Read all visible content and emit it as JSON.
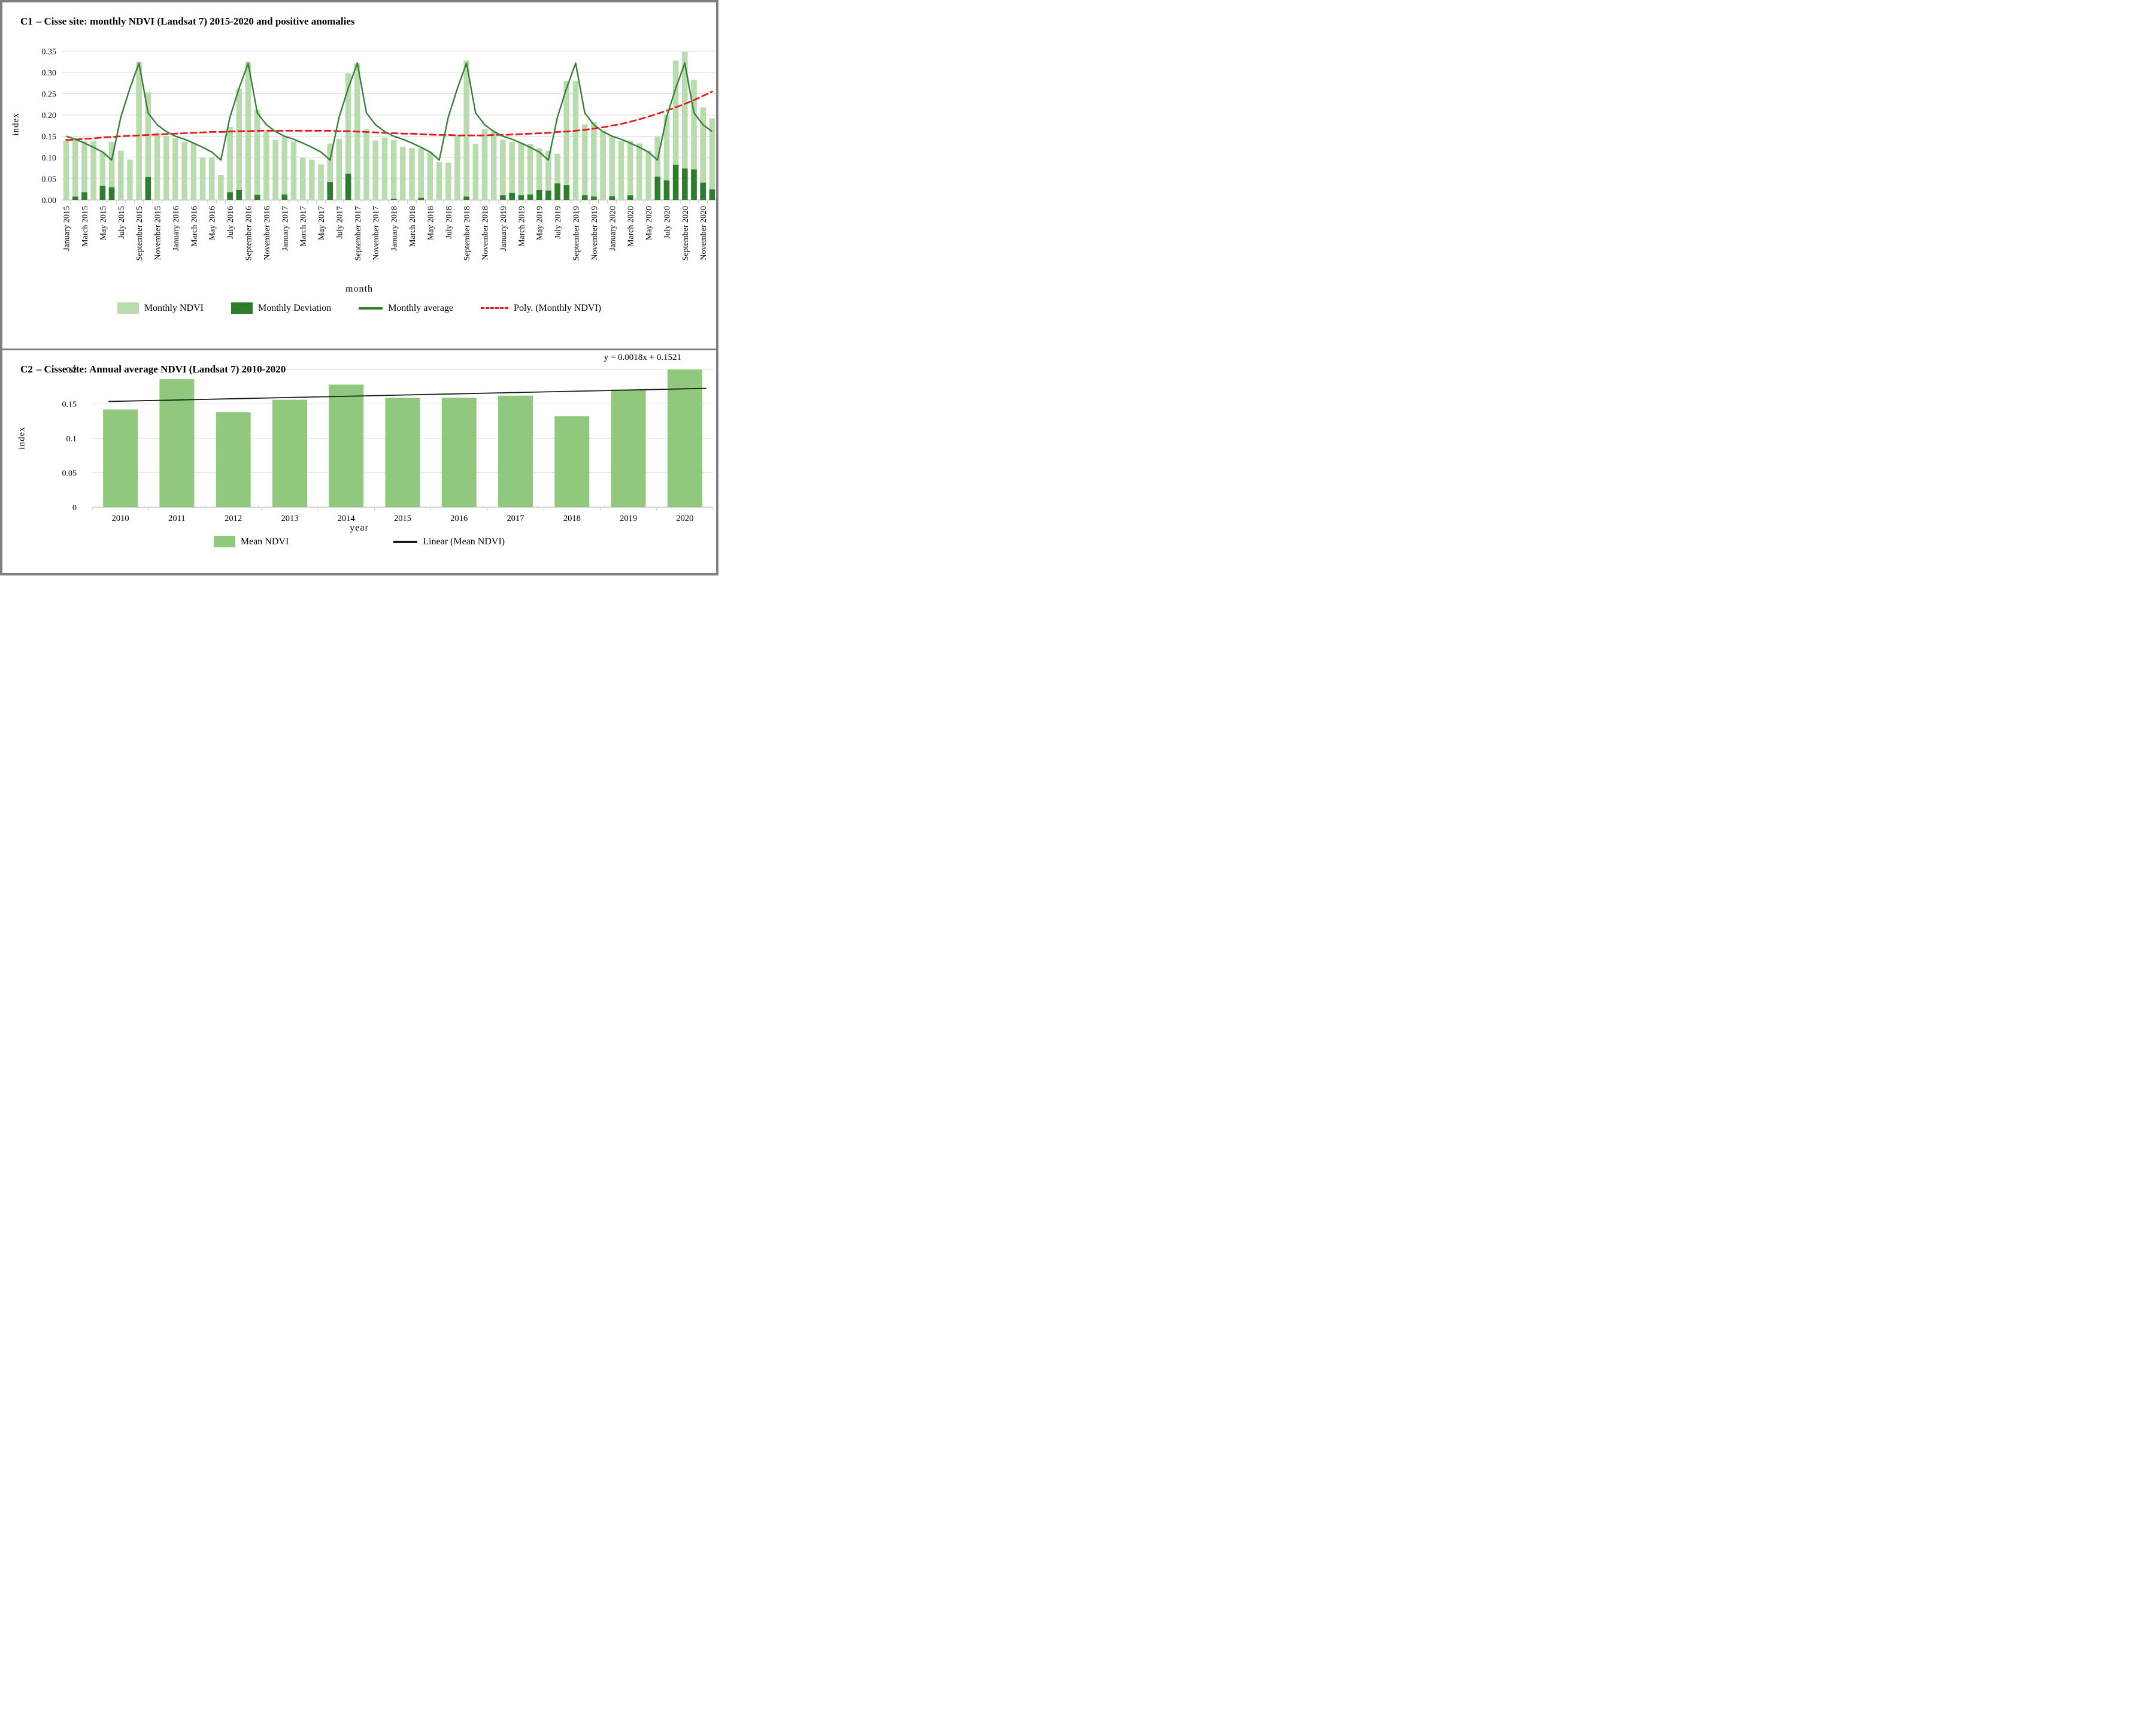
{
  "c1": {
    "title_prefix": "C1",
    "title_rest": "– Cisse site: monthly NDVI (Landsat 7) 2015-2020 and positive anomalies",
    "y_axis_label": "index",
    "x_axis_label": "month",
    "legend": [
      {
        "label": "Monthly NDVI",
        "type": "swatch",
        "color": "#b9dcae"
      },
      {
        "label": "Monthly Deviation",
        "type": "swatch",
        "color": "#2d7d2d"
      },
      {
        "label": "Monthly average",
        "type": "line",
        "color": "#377f37"
      },
      {
        "label": "Poly. (Monthly NDVI)",
        "type": "dashed-line",
        "color": "#e8191c"
      }
    ]
  },
  "c2": {
    "title_prefix": "C2",
    "title_rest": "– Cisse site: Annual average NDVI (Landsat 7) 2010-2020",
    "equation": "y = 0.0018x + 0.1521",
    "y_axis_label": "index",
    "x_axis_label": "year",
    "legend": [
      {
        "label": "Mean NDVI",
        "type": "swatch",
        "color": "#90c97e"
      },
      {
        "label": "Linear (Mean NDVI)",
        "type": "line",
        "color": "#1a1a1a"
      }
    ]
  },
  "chart_data": [
    {
      "id": "c1",
      "type": "bar",
      "title": "C1 – Cisse site: monthly NDVI (Landsat 7) 2015-2020 and positive anomalies",
      "xlabel": "month",
      "ylabel": "index",
      "ylim": [
        0,
        0.35
      ],
      "ytick_step": 0.05,
      "grid": true,
      "legend_position": "bottom",
      "x_ticks_every": 2,
      "categories": [
        "January 2015",
        "February 2015",
        "March 2015",
        "April 2015",
        "May 2015",
        "June 2015",
        "July 2015",
        "August 2015",
        "September 2015",
        "October 2015",
        "November 2015",
        "December 2015",
        "January 2016",
        "February 2016",
        "March 2016",
        "April 2016",
        "May 2016",
        "June 2016",
        "July 2016",
        "August 2016",
        "September 2016",
        "October 2016",
        "November 2016",
        "December 2016",
        "January 2017",
        "February 2017",
        "March 2017",
        "April 2017",
        "May 2017",
        "June 2017",
        "July 2017",
        "August 2017",
        "September 2017",
        "October 2017",
        "November 2017",
        "December 2017",
        "January 2018",
        "February 2018",
        "March 2018",
        "April 2018",
        "May 2018",
        "June 2018",
        "July 2018",
        "August 2018",
        "September 2018",
        "October 2018",
        "November 2018",
        "December 2018",
        "January 2019",
        "February 2019",
        "March 2019",
        "April 2019",
        "May 2019",
        "June 2019",
        "July 2019",
        "August 2019",
        "September 2019",
        "October 2019",
        "November 2019",
        "December 2019",
        "January 2020",
        "February 2020",
        "March 2020",
        "April 2020",
        "May 2020",
        "June 2020",
        "July 2020",
        "August 2020",
        "September 2020",
        "October 2020",
        "November 2020",
        "December 2020"
      ],
      "series": [
        {
          "name": "Monthly NDVI",
          "type": "bar",
          "color": "#b9dcae",
          "values": [
            0.139,
            0.145,
            0.139,
            0.139,
            0.114,
            0.137,
            0.116,
            0.095,
            0.325,
            0.253,
            0.158,
            0.15,
            0.145,
            0.137,
            0.134,
            0.099,
            0.1,
            0.059,
            0.172,
            0.262,
            0.325,
            0.213,
            0.161,
            0.141,
            0.15,
            0.138,
            0.1,
            0.095,
            0.084,
            0.133,
            0.144,
            0.298,
            0.322,
            0.166,
            0.14,
            0.147,
            0.141,
            0.125,
            0.122,
            0.122,
            0.113,
            0.089,
            0.088,
            0.151,
            0.328,
            0.132,
            0.167,
            0.162,
            0.142,
            0.137,
            0.134,
            0.132,
            0.122,
            0.116,
            0.109,
            0.28,
            0.28,
            0.178,
            0.183,
            0.162,
            0.149,
            0.139,
            0.139,
            0.133,
            0.116,
            0.149,
            0.2,
            0.328,
            0.348,
            0.283,
            0.218,
            0.192
          ]
        },
        {
          "name": "Monthly Deviation",
          "type": "bar",
          "color": "#2d7d2d",
          "values": [
            0,
            0.008,
            0.018,
            0,
            0.033,
            0.03,
            0,
            0,
            0,
            0.054,
            0,
            0,
            0,
            0,
            0,
            0,
            0,
            0,
            0.018,
            0.024,
            0,
            0.012,
            0,
            0,
            0.013,
            0,
            0,
            0,
            0,
            0.042,
            0,
            0.062,
            0,
            0,
            0,
            0,
            0.003,
            0,
            0,
            0.005,
            0,
            0,
            0,
            0,
            0.008,
            0,
            0,
            0,
            0.011,
            0.017,
            0.011,
            0.013,
            0.024,
            0.022,
            0.039,
            0.035,
            0,
            0.011,
            0.008,
            0,
            0.009,
            0,
            0.011,
            0,
            0,
            0.055,
            0.046,
            0.083,
            0.074,
            0.072,
            0.041,
            0.025
          ]
        },
        {
          "name": "Monthly average",
          "type": "line",
          "color": "#377f37",
          "values": [
            0.15,
            0.143,
            0.134,
            0.124,
            0.113,
            0.094,
            0.195,
            0.263,
            0.322,
            0.205,
            0.177,
            0.161,
            0.15,
            0.143,
            0.134,
            0.124,
            0.113,
            0.094,
            0.195,
            0.263,
            0.322,
            0.205,
            0.177,
            0.161,
            0.15,
            0.143,
            0.134,
            0.124,
            0.113,
            0.094,
            0.195,
            0.263,
            0.322,
            0.205,
            0.177,
            0.161,
            0.15,
            0.143,
            0.134,
            0.124,
            0.113,
            0.094,
            0.195,
            0.263,
            0.322,
            0.205,
            0.177,
            0.161,
            0.15,
            0.143,
            0.134,
            0.124,
            0.113,
            0.094,
            0.195,
            0.263,
            0.322,
            0.205,
            0.177,
            0.161,
            0.15,
            0.143,
            0.134,
            0.124,
            0.113,
            0.094,
            0.195,
            0.263,
            0.322,
            0.205,
            0.177,
            0.161
          ]
        },
        {
          "name": "Poly. (Monthly NDVI)",
          "type": "dashed-line",
          "color": "#e8191c",
          "values": [
            0.141,
            0.142,
            0.144,
            0.145,
            0.147,
            0.148,
            0.15,
            0.151,
            0.152,
            0.153,
            0.154,
            0.155,
            0.156,
            0.157,
            0.158,
            0.159,
            0.16,
            0.16,
            0.161,
            0.162,
            0.162,
            0.163,
            0.163,
            0.163,
            0.163,
            0.163,
            0.163,
            0.163,
            0.163,
            0.163,
            0.162,
            0.162,
            0.161,
            0.16,
            0.159,
            0.158,
            0.157,
            0.156,
            0.156,
            0.155,
            0.154,
            0.153,
            0.153,
            0.152,
            0.152,
            0.152,
            0.152,
            0.153,
            0.153,
            0.154,
            0.155,
            0.156,
            0.157,
            0.158,
            0.16,
            0.161,
            0.163,
            0.165,
            0.168,
            0.171,
            0.175,
            0.179,
            0.184,
            0.19,
            0.196,
            0.203,
            0.21,
            0.218,
            0.226,
            0.235,
            0.245,
            0.255
          ]
        }
      ]
    },
    {
      "id": "c2",
      "type": "bar",
      "title": "C2 – Cisse site: Annual average NDVI (Landsat 7) 2010-2020",
      "xlabel": "year",
      "ylabel": "index",
      "ylim": [
        0,
        0.2
      ],
      "ytick_step": 0.05,
      "grid": true,
      "legend_position": "bottom",
      "annotation": "y = 0.0018x + 0.1521",
      "categories": [
        "2010",
        "2011",
        "2012",
        "2013",
        "2014",
        "2015",
        "2016",
        "2017",
        "2018",
        "2019",
        "2020"
      ],
      "series": [
        {
          "name": "Mean NDVI",
          "type": "bar",
          "color": "#90c97e",
          "values": [
            0.142,
            0.186,
            0.138,
            0.156,
            0.178,
            0.159,
            0.159,
            0.162,
            0.132,
            0.171,
            0.2
          ]
        },
        {
          "name": "Linear (Mean NDVI)",
          "type": "line",
          "color": "#1a1a1a",
          "slope": 0.0018,
          "intercept": 0.1521,
          "equation": "y = 0.0018x + 0.1521"
        }
      ]
    }
  ]
}
